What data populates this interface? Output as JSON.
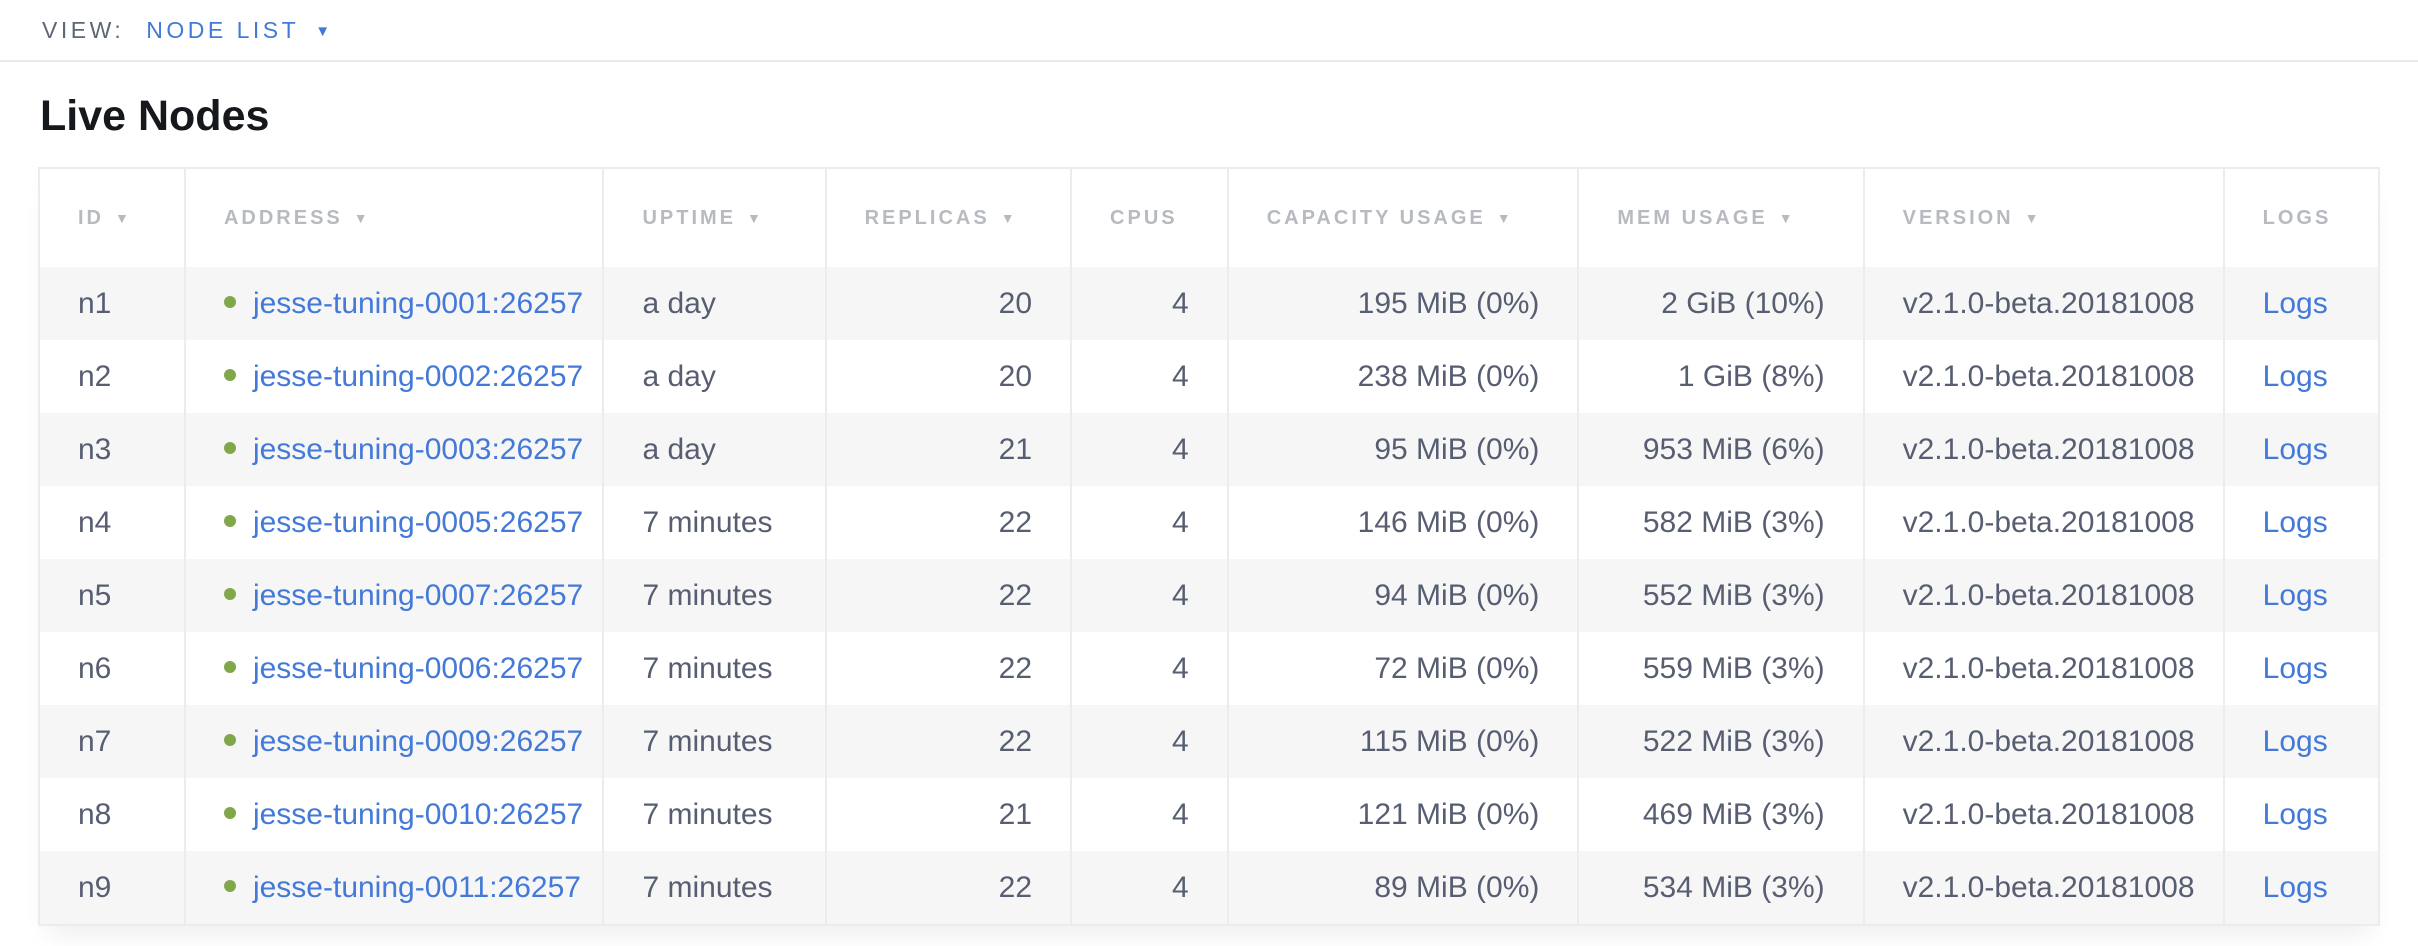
{
  "view_bar": {
    "label": "VIEW:",
    "selected_view": "NODE LIST",
    "dropdown_caret": "▼"
  },
  "page": {
    "title": "Live Nodes"
  },
  "icons": {
    "sort_arrow": "▼",
    "node_status_dot": "healthy-green-dot"
  },
  "colors": {
    "link_blue": "#4379d8",
    "healthy_green": "#82a74b",
    "header_gray": "#b7babf",
    "body_text": "#575e72",
    "stripe_gray": "#f6f6f6",
    "border_gray": "#ececec"
  },
  "table": {
    "columns": [
      {
        "key": "id",
        "label": "ID",
        "sortable": true,
        "align": "left"
      },
      {
        "key": "address",
        "label": "ADDRESS",
        "sortable": true,
        "align": "left"
      },
      {
        "key": "uptime",
        "label": "UPTIME",
        "sortable": true,
        "align": "left"
      },
      {
        "key": "replicas",
        "label": "REPLICAS",
        "sortable": true,
        "align": "right"
      },
      {
        "key": "cpus",
        "label": "CPUS",
        "sortable": false,
        "align": "right"
      },
      {
        "key": "capacity",
        "label": "CAPACITY USAGE",
        "sortable": true,
        "align": "right"
      },
      {
        "key": "mem",
        "label": "MEM USAGE",
        "sortable": true,
        "align": "right"
      },
      {
        "key": "version",
        "label": "VERSION",
        "sortable": true,
        "align": "left"
      },
      {
        "key": "logs",
        "label": "LOGS",
        "sortable": false,
        "align": "left"
      }
    ],
    "rows": [
      {
        "id": "n1",
        "address": "jesse-tuning-0001:26257",
        "uptime": "a day",
        "replicas": "20",
        "cpus": "4",
        "capacity": "195 MiB (0%)",
        "mem": "2 GiB (10%)",
        "version": "v2.1.0-beta.20181008",
        "logs": "Logs",
        "status": "healthy"
      },
      {
        "id": "n2",
        "address": "jesse-tuning-0002:26257",
        "uptime": "a day",
        "replicas": "20",
        "cpus": "4",
        "capacity": "238 MiB (0%)",
        "mem": "1 GiB (8%)",
        "version": "v2.1.0-beta.20181008",
        "logs": "Logs",
        "status": "healthy"
      },
      {
        "id": "n3",
        "address": "jesse-tuning-0003:26257",
        "uptime": "a day",
        "replicas": "21",
        "cpus": "4",
        "capacity": "95 MiB (0%)",
        "mem": "953 MiB (6%)",
        "version": "v2.1.0-beta.20181008",
        "logs": "Logs",
        "status": "healthy"
      },
      {
        "id": "n4",
        "address": "jesse-tuning-0005:26257",
        "uptime": "7 minutes",
        "replicas": "22",
        "cpus": "4",
        "capacity": "146 MiB (0%)",
        "mem": "582 MiB (3%)",
        "version": "v2.1.0-beta.20181008",
        "logs": "Logs",
        "status": "healthy"
      },
      {
        "id": "n5",
        "address": "jesse-tuning-0007:26257",
        "uptime": "7 minutes",
        "replicas": "22",
        "cpus": "4",
        "capacity": "94 MiB (0%)",
        "mem": "552 MiB (3%)",
        "version": "v2.1.0-beta.20181008",
        "logs": "Logs",
        "status": "healthy"
      },
      {
        "id": "n6",
        "address": "jesse-tuning-0006:26257",
        "uptime": "7 minutes",
        "replicas": "22",
        "cpus": "4",
        "capacity": "72 MiB (0%)",
        "mem": "559 MiB (3%)",
        "version": "v2.1.0-beta.20181008",
        "logs": "Logs",
        "status": "healthy"
      },
      {
        "id": "n7",
        "address": "jesse-tuning-0009:26257",
        "uptime": "7 minutes",
        "replicas": "22",
        "cpus": "4",
        "capacity": "115 MiB (0%)",
        "mem": "522 MiB (3%)",
        "version": "v2.1.0-beta.20181008",
        "logs": "Logs",
        "status": "healthy"
      },
      {
        "id": "n8",
        "address": "jesse-tuning-0010:26257",
        "uptime": "7 minutes",
        "replicas": "21",
        "cpus": "4",
        "capacity": "121 MiB (0%)",
        "mem": "469 MiB (3%)",
        "version": "v2.1.0-beta.20181008",
        "logs": "Logs",
        "status": "healthy"
      },
      {
        "id": "n9",
        "address": "jesse-tuning-0011:26257",
        "uptime": "7 minutes",
        "replicas": "22",
        "cpus": "4",
        "capacity": "89 MiB (0%)",
        "mem": "534 MiB (3%)",
        "version": "v2.1.0-beta.20181008",
        "logs": "Logs",
        "status": "healthy"
      }
    ]
  }
}
